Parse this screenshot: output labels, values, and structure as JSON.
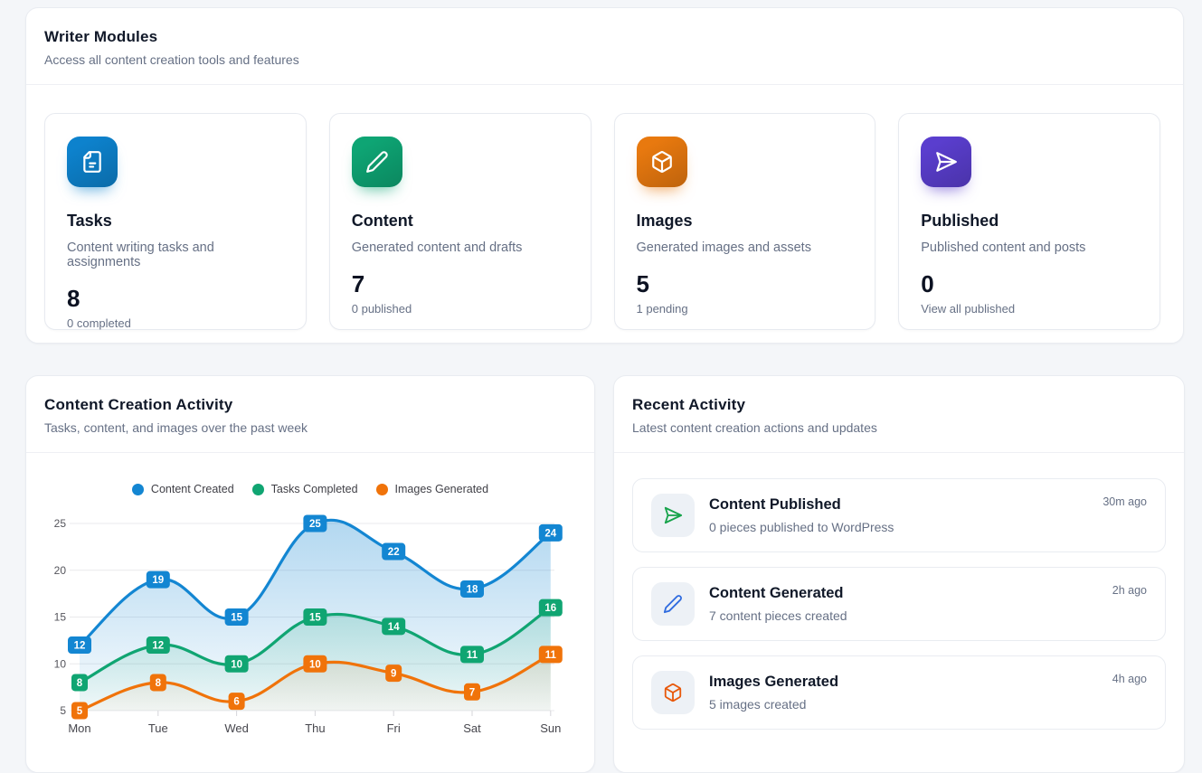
{
  "writer_modules": {
    "title": "Writer Modules",
    "subtitle": "Access all content creation tools and features",
    "cards": [
      {
        "title": "Tasks",
        "description": "Content writing tasks and assignments",
        "count": "8",
        "subtext": "0 completed",
        "color": "#0d82cd",
        "icon": "file-text"
      },
      {
        "title": "Content",
        "description": "Generated content and drafts",
        "count": "7",
        "subtext": "0 published",
        "color": "#0ea574",
        "icon": "pencil"
      },
      {
        "title": "Images",
        "description": "Generated images and assets",
        "count": "5",
        "subtext": "1 pending",
        "color": "#e8790f",
        "icon": "box"
      },
      {
        "title": "Published",
        "description": "Published content and posts",
        "count": "0",
        "subtext": "View all published",
        "color": "#5a3ece",
        "icon": "send"
      }
    ]
  },
  "activity_chart": {
    "title": "Content Creation Activity",
    "subtitle": "Tasks, content, and images over the past week"
  },
  "chart_data": {
    "type": "area",
    "x": [
      "Mon",
      "Tue",
      "Wed",
      "Thu",
      "Fri",
      "Sat",
      "Sun"
    ],
    "series": [
      {
        "name": "Content Created",
        "color": "#1386d2",
        "values": [
          12,
          19,
          15,
          25,
          22,
          18,
          24
        ]
      },
      {
        "name": "Tasks Completed",
        "color": "#10a572",
        "values": [
          8,
          12,
          10,
          15,
          14,
          11,
          16
        ]
      },
      {
        "name": "Images Generated",
        "color": "#f0730a",
        "values": [
          5,
          8,
          6,
          10,
          9,
          7,
          11
        ]
      }
    ],
    "ylim": [
      5,
      25
    ],
    "yticks": [
      5,
      10,
      15,
      20,
      25
    ],
    "grid": true,
    "legend_position": "top",
    "data_labels": true
  },
  "recent_activity": {
    "title": "Recent Activity",
    "subtitle": "Latest content creation actions and updates",
    "items": [
      {
        "title": "Content Published",
        "description": "0 pieces published to WordPress",
        "time": "30m ago",
        "icon": "send",
        "icon_color": "#16a34a"
      },
      {
        "title": "Content Generated",
        "description": "7 content pieces created",
        "time": "2h ago",
        "icon": "pencil",
        "icon_color": "#2f6bdf"
      },
      {
        "title": "Images Generated",
        "description": "5 images created",
        "time": "4h ago",
        "icon": "box",
        "icon_color": "#e8590c"
      }
    ]
  }
}
